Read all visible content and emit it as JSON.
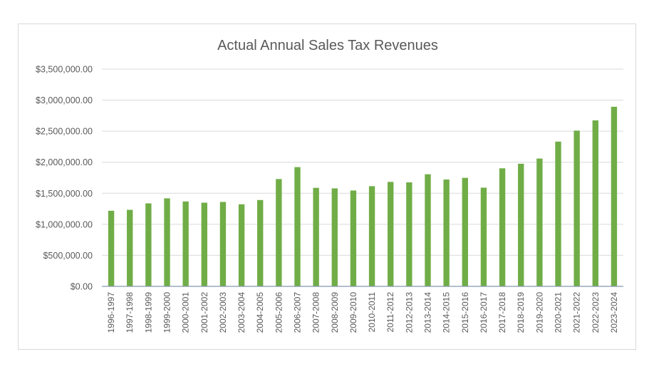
{
  "chart_data": {
    "type": "bar",
    "title": "Actual Annual Sales Tax Revenues",
    "xlabel": "",
    "ylabel": "",
    "ylim": [
      0,
      3500000
    ],
    "yticks": [
      0,
      500000,
      1000000,
      1500000,
      2000000,
      2500000,
      3000000,
      3500000
    ],
    "ytick_labels": [
      "$0.00",
      "$500,000.00",
      "$1,000,000.00",
      "$1,500,000.00",
      "$2,000,000.00",
      "$2,500,000.00",
      "$3,000,000.00",
      "$3,500,000.00"
    ],
    "grid": true,
    "legend": "none",
    "bar_color": "#70ad47",
    "categories": [
      "1996-1997",
      "1997-1998",
      "1998-1999",
      "1999-2000",
      "2000-2001",
      "2001-2002",
      "2002-2003",
      "2003-2004",
      "2004-2005",
      "2005-2006",
      "2006-2007",
      "2007-2008",
      "2008-2009",
      "2009-2010",
      "2010-2011",
      "2011-2012",
      "2012-2013",
      "2013-2014",
      "2014-2015",
      "2015-2016",
      "2016-2017",
      "2017-2018",
      "2018-2019",
      "2019-2020",
      "2020-2021",
      "2021-2022",
      "2022-2023",
      "2023-2024"
    ],
    "values": [
      1218000,
      1233000,
      1337000,
      1418000,
      1368000,
      1348000,
      1360000,
      1322000,
      1391000,
      1729000,
      1921000,
      1587000,
      1579000,
      1544000,
      1614000,
      1683000,
      1675000,
      1806000,
      1721000,
      1748000,
      1590000,
      1902000,
      1975000,
      2059000,
      2332000,
      2509000,
      2674000,
      2893000
    ]
  }
}
